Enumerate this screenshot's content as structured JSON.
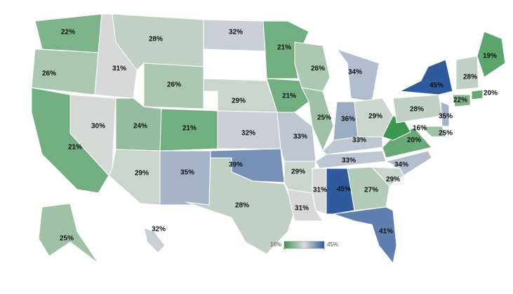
{
  "chart_data": {
    "type": "choropleth",
    "values": [
      22,
      26,
      21,
      30,
      31,
      28,
      26,
      24,
      29,
      21,
      35,
      32,
      29,
      32,
      39,
      28,
      21,
      21,
      33,
      29,
      31,
      26,
      25,
      34,
      36,
      29,
      33,
      33,
      31,
      45,
      27,
      41,
      29,
      34,
      20,
      16,
      28,
      45,
      35,
      25,
      22,
      20,
      28,
      19,
      25,
      32
    ],
    "value_labels": [
      "22%",
      "26%",
      "21%",
      "30%",
      "31%",
      "28%",
      "26%",
      "24%",
      "29%",
      "21%",
      "35%",
      "32%",
      "29%",
      "32%",
      "39%",
      "28%",
      "21%",
      "21%",
      "33%",
      "29%",
      "31%",
      "26%",
      "25%",
      "34%",
      "36%",
      "29%",
      "33%",
      "33%",
      "31%",
      "45%",
      "27%",
      "41%",
      "29%",
      "34%",
      "20%",
      "16%",
      "28%",
      "45%",
      "35%",
      "25%",
      "22%",
      "20%",
      "28%",
      "19%",
      "25%",
      "32%"
    ],
    "colorbar": {
      "ticks": [
        {
          "value": 16,
          "label": "16%"
        },
        {
          "value": 45,
          "label": "45%"
        }
      ],
      "colors": [
        "#3a974f",
        "#dcdcdc",
        "#2f5b9e"
      ]
    }
  }
}
